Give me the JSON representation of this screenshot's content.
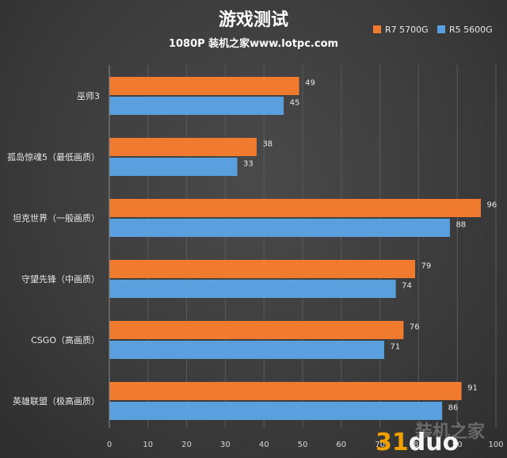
{
  "chart_data": {
    "type": "bar",
    "orientation": "horizontal",
    "title": "游戏测试",
    "subtitle": "1080P  装机之家www.lotpc.com",
    "categories": [
      "巫师3",
      "孤岛惊魂5（最低画质）",
      "坦克世界（一般画质）",
      "守望先锋（中画质）",
      "CSGO（高画质）",
      "英雄联盟（极高画质）"
    ],
    "series": [
      {
        "name": "R7 5700G",
        "color": "#f07b2e",
        "values": [
          49,
          38,
          96,
          79,
          76,
          91
        ]
      },
      {
        "name": "R5 5600G",
        "color": "#5a9fde",
        "values": [
          45,
          33,
          88,
          74,
          71,
          86
        ]
      }
    ],
    "xlim": [
      0,
      100
    ],
    "xticks": [
      "0",
      "10",
      "20",
      "30",
      "40",
      "50",
      "60",
      "70",
      "80",
      "90",
      "100"
    ],
    "grid": true,
    "legend_position": "top-right"
  },
  "watermark": {
    "number": "31",
    "text": "duo",
    "faint": "装机之家"
  }
}
